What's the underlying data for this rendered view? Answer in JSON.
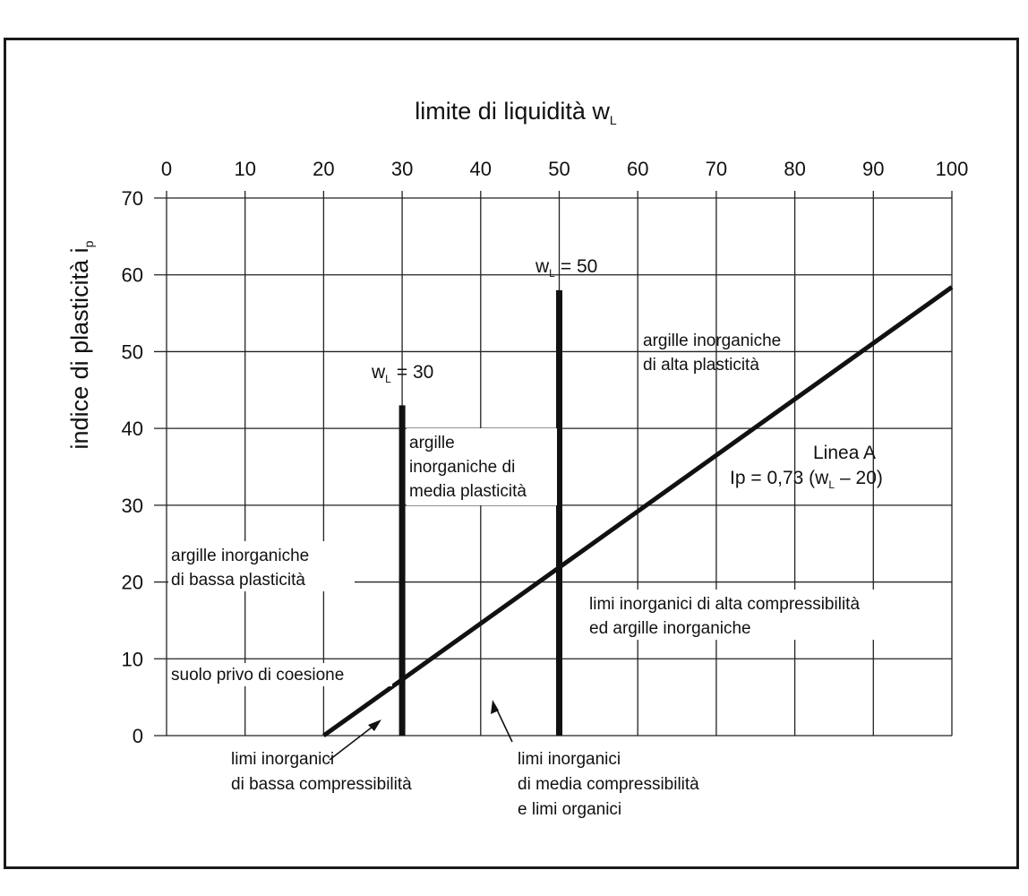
{
  "chart_data": {
    "type": "line",
    "title": "limite di liquidità w",
    "title_sub": "L",
    "xlabel": "limite di liquidità w",
    "xlabel_sub": "L",
    "ylabel": "indice di plasticità i",
    "ylabel_sub": "p",
    "xlim": [
      0,
      100
    ],
    "ylim": [
      0,
      70
    ],
    "x_ticks": [
      "0",
      "10",
      "20",
      "30",
      "40",
      "50",
      "60",
      "70",
      "80",
      "90",
      "100"
    ],
    "y_ticks": [
      "0",
      "10",
      "20",
      "30",
      "40",
      "50",
      "60",
      "70"
    ],
    "grid": true,
    "series": [
      {
        "name": "Linea A",
        "x": [
          20,
          100
        ],
        "y": [
          0,
          58.4
        ]
      },
      {
        "name": "w_L = 30",
        "x": [
          30,
          30
        ],
        "y": [
          0,
          43
        ]
      },
      {
        "name": "w_L = 50",
        "x": [
          50,
          50
        ],
        "y": [
          0,
          58
        ]
      }
    ],
    "annotations": {
      "wl30": "w",
      "wl30_sub": "L",
      "wl30_rest": "= 30",
      "wl50": "w",
      "wl50_sub": "L",
      "wl50_rest": "= 50",
      "linea_a": "Linea A",
      "equation_a": "Ip = 0,73 (w",
      "equation_sub": "L",
      "equation_b": "– 20)",
      "alta_plast_1": "argille inorganiche",
      "alta_plast_2": "di alta plasticità",
      "media_plast_1": "argille",
      "media_plast_2": "inorganiche di",
      "media_plast_3": "media plasticità",
      "bassa_plast_1": "argille inorganiche",
      "bassa_plast_2": "di bassa plasticità",
      "alta_comp_1": "limi inorganici di alta compressibilità",
      "alta_comp_2": "ed argille inorganiche",
      "privo_coesione": "suolo privo di coesione",
      "bassa_comp_1": "limi inorganici",
      "bassa_comp_2": "di bassa compressibilità",
      "media_comp_1": "limi inorganici",
      "media_comp_2": "di media compressibilità",
      "media_comp_3": "e limi organici"
    }
  }
}
